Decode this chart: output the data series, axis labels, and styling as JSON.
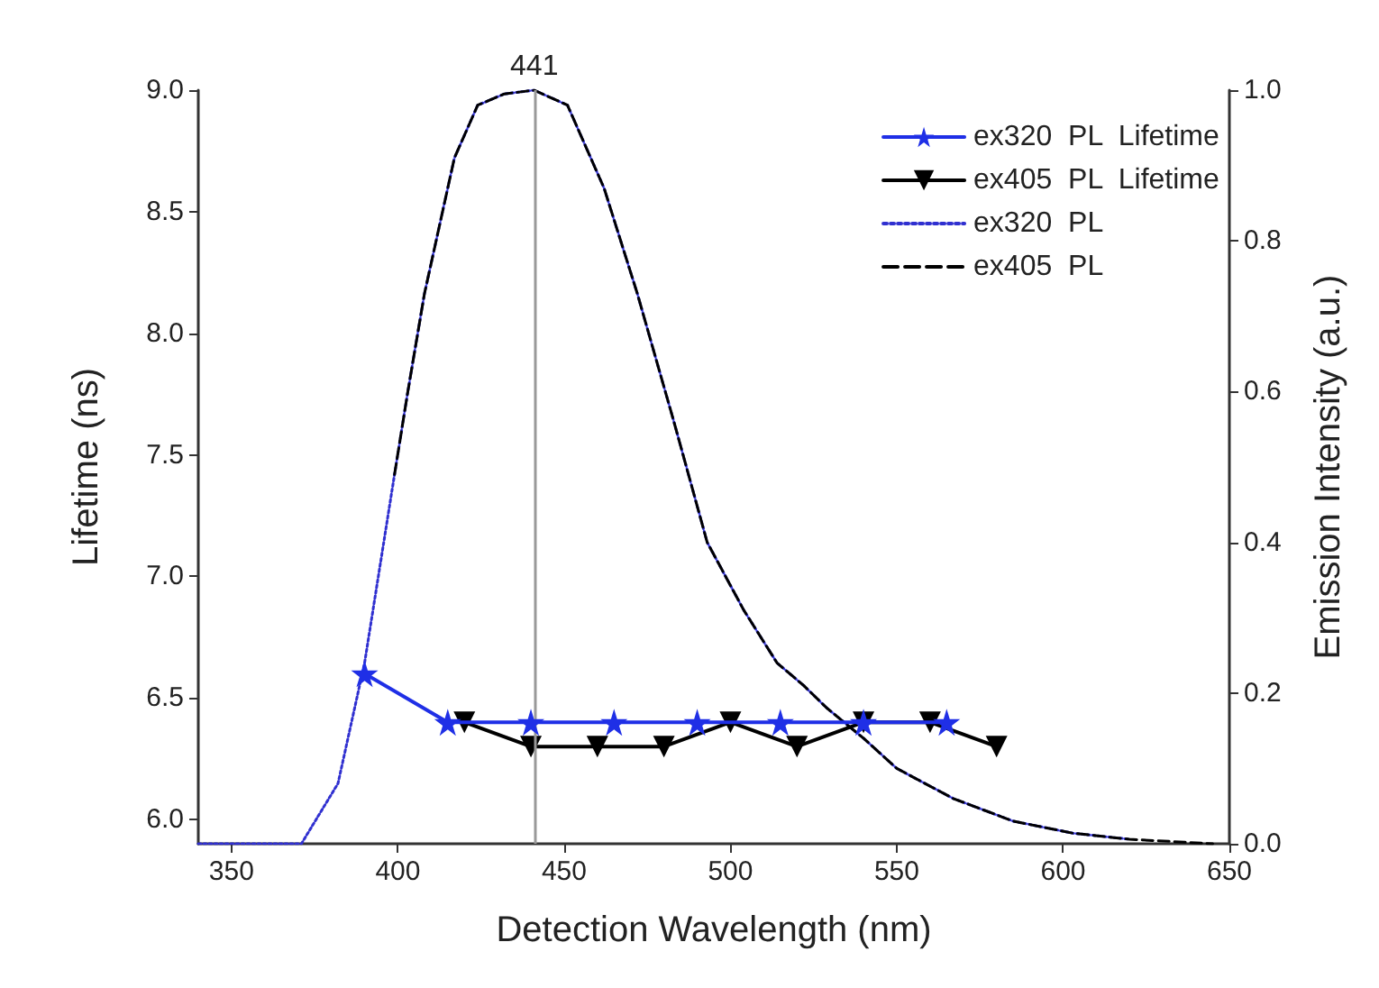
{
  "chart_data": {
    "type": "line",
    "xlabel": "Detection Wavelength (nm)",
    "ylabel": "Lifetime (ns)",
    "y2label": "Emission Intensity (a.u.)",
    "xlim": [
      340,
      650
    ],
    "xticks": [
      350,
      400,
      450,
      500,
      550,
      600,
      650
    ],
    "ylim": [
      5.9,
      9.0
    ],
    "yticks": [
      {
        "value": 6.0,
        "label": "6.0"
      },
      6.5,
      {
        "value": 7.0,
        "label": "7.0"
      },
      7.5,
      {
        "value": 8.0,
        "label": "8.0"
      },
      8.5,
      {
        "value": 9.0,
        "label": "9.0"
      }
    ],
    "y2lim": [
      0,
      1.0
    ],
    "y2ticks": [
      {
        "value": 0,
        "label": "0.0"
      },
      0.2,
      0.4,
      0.6,
      0.8,
      {
        "value": 1.0,
        "label": "1.0"
      }
    ],
    "grid": false,
    "legend": "top right",
    "ref_lines": [
      {
        "axis": "x",
        "value": 441,
        "label": "441",
        "color": "#999999"
      }
    ],
    "series": [
      {
        "name": "ex320  PL  Lifetime",
        "color": "#1f2fe6",
        "marker": "star",
        "line_style": "solid",
        "x": [
          390,
          415,
          440,
          465,
          490,
          515,
          540,
          565
        ],
        "values": [
          6.6,
          6.4,
          6.4,
          6.4,
          6.4,
          6.4,
          6.4,
          6.4
        ]
      },
      {
        "name": "ex405  PL  Lifetime",
        "color": "#000000",
        "marker": "triangle",
        "line_style": "solid",
        "x": [
          420,
          440,
          460,
          480,
          500,
          520,
          540,
          560,
          580
        ],
        "values": [
          6.4,
          6.3,
          6.3,
          6.3,
          6.4,
          6.3,
          6.4,
          6.4,
          6.3
        ]
      },
      {
        "name": "ex320  PL",
        "color": "#3030d0",
        "marker": "none",
        "line_style": "dotted",
        "axis": "y2",
        "x": [
          340,
          371,
          382,
          390,
          399,
          403,
          408,
          417,
          424,
          432,
          441,
          451,
          462,
          472,
          483,
          493,
          504,
          514,
          522,
          529,
          540,
          550,
          567,
          585,
          603,
          620
        ],
        "values": [
          0,
          0,
          0.08,
          0.24,
          0.49,
          0.6,
          0.73,
          0.91,
          0.98,
          0.995,
          1.0,
          0.98,
          0.87,
          0.73,
          0.56,
          0.4,
          0.31,
          0.24,
          0.21,
          0.18,
          0.14,
          0.1,
          0.06,
          0.03,
          0.014,
          0.006
        ]
      },
      {
        "name": "ex405  PL",
        "color": "#000000",
        "marker": "none",
        "line_style": "dashed",
        "axis": "y2",
        "x": [
          399,
          403,
          408,
          417,
          424,
          432,
          441,
          451,
          462,
          472,
          483,
          493,
          504,
          514,
          522,
          529,
          540,
          550,
          567,
          585,
          603,
          620,
          645
        ],
        "values": [
          0.49,
          0.6,
          0.73,
          0.91,
          0.98,
          0.995,
          1.0,
          0.98,
          0.87,
          0.73,
          0.56,
          0.4,
          0.31,
          0.24,
          0.21,
          0.18,
          0.14,
          0.1,
          0.06,
          0.03,
          0.014,
          0.006,
          0
        ]
      }
    ]
  }
}
